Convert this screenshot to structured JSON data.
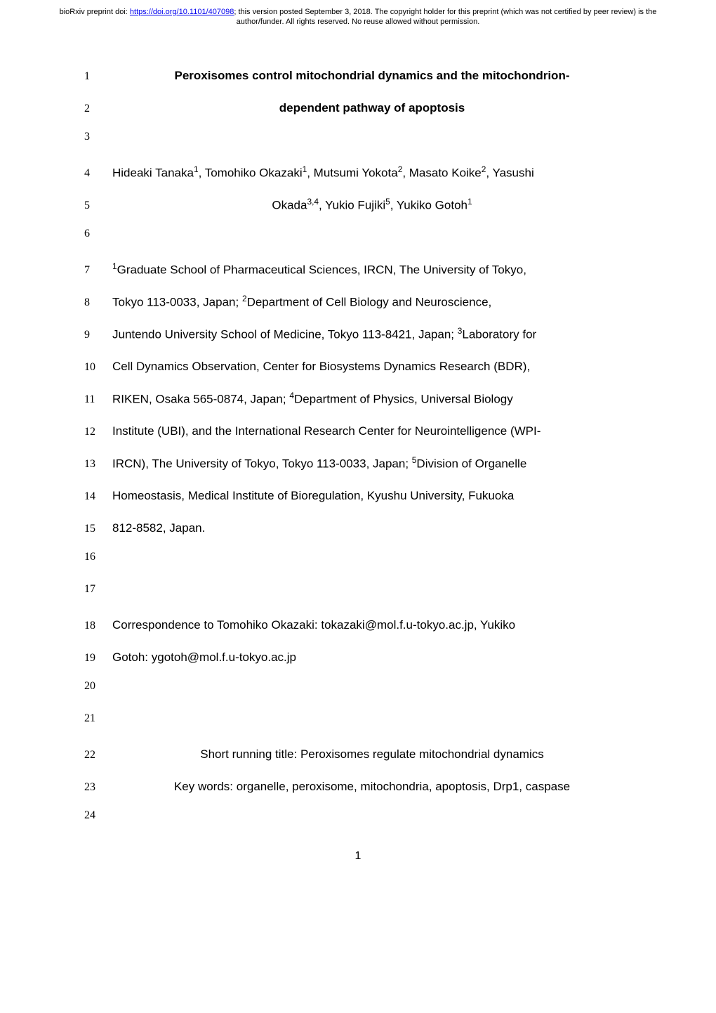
{
  "banner": {
    "prefix": "bioRxiv preprint doi: ",
    "doi_url": "https://doi.org/10.1101/407098",
    "suffix": "; this version posted September 3, 2018. The copyright holder for this preprint (which was not certified by peer review) is the author/funder. All rights reserved. No reuse allowed without permission."
  },
  "lines": [
    {
      "num": "1",
      "text": "Peroxisomes control mitochondrial dynamics and the mitochondrion-",
      "cls": "title-line"
    },
    {
      "num": "2",
      "text": "dependent pathway of apoptosis",
      "cls": "title-line"
    },
    {
      "num": "3",
      "text": "",
      "cls": ""
    },
    {
      "num": "4",
      "html": "Hideaki Tanaka<sup>1</sup>, Tomohiko Okazaki<sup>1</sup>, Mutsumi Yokota<sup>2</sup>, Masato Koike<sup>2</sup>, Yasushi",
      "cls": "author-line"
    },
    {
      "num": "5",
      "html": "Okada<sup>3,4</sup>, Yukio Fujiki<sup>5</sup>, Yukiko Gotoh<sup>1</sup>",
      "cls": "author-center"
    },
    {
      "num": "6",
      "text": "",
      "cls": ""
    },
    {
      "num": "7",
      "html": "<sup>1</sup>Graduate School of Pharmaceutical Sciences, IRCN, The University of Tokyo,",
      "cls": "body-text"
    },
    {
      "num": "8",
      "html": "Tokyo 113-0033, Japan; <sup>2</sup>Department of Cell Biology and Neuroscience,",
      "cls": "body-text"
    },
    {
      "num": "9",
      "html": "Juntendo University School of Medicine, Tokyo 113-8421, Japan; <sup>3</sup>Laboratory for",
      "cls": "body-text"
    },
    {
      "num": "10",
      "text": "Cell Dynamics Observation, Center for Biosystems Dynamics Research (BDR),",
      "cls": "body-text"
    },
    {
      "num": "11",
      "html": "RIKEN, Osaka 565-0874, Japan; <sup>4</sup>Department of Physics, Universal Biology",
      "cls": "body-text"
    },
    {
      "num": "12",
      "text": "Institute (UBI), and the International Research Center for Neurointelligence (WPI-",
      "cls": "body-text"
    },
    {
      "num": "13",
      "html": "IRCN), The University of Tokyo, Tokyo 113-0033, Japan; <sup>5</sup>Division of Organelle",
      "cls": "body-text"
    },
    {
      "num": "14",
      "text": "Homeostasis, Medical Institute of Bioregulation, Kyushu University, Fukuoka",
      "cls": "body-text"
    },
    {
      "num": "15",
      "text": "812-8582, Japan.",
      "cls": ""
    },
    {
      "num": "16",
      "text": "",
      "cls": ""
    },
    {
      "num": "17",
      "text": "",
      "cls": ""
    },
    {
      "num": "18",
      "text": "Correspondence to Tomohiko Okazaki: tokazaki@mol.f.u-tokyo.ac.jp, Yukiko",
      "cls": "body-text"
    },
    {
      "num": "19",
      "text": "Gotoh: ygotoh@mol.f.u-tokyo.ac.jp",
      "cls": ""
    },
    {
      "num": "20",
      "text": "",
      "cls": ""
    },
    {
      "num": "21",
      "text": "",
      "cls": ""
    },
    {
      "num": "22",
      "text": "Short running title: Peroxisomes regulate mitochondrial dynamics",
      "cls": "center-text"
    },
    {
      "num": "23",
      "text": "Key words: organelle, peroxisome, mitochondria, apoptosis, Drp1, caspase",
      "cls": "center-text"
    },
    {
      "num": "24",
      "text": "",
      "cls": ""
    }
  ],
  "page_number": "1"
}
